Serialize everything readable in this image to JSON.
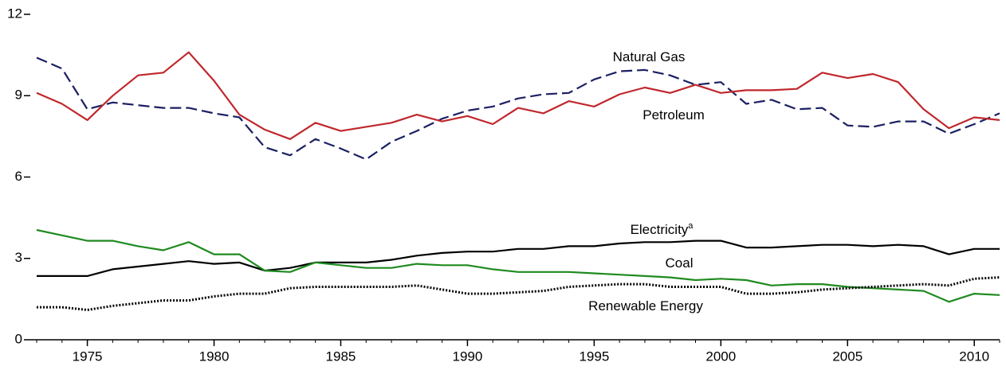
{
  "chart_data": {
    "type": "line",
    "x": [
      1973,
      1974,
      1975,
      1976,
      1977,
      1978,
      1979,
      1980,
      1981,
      1982,
      1983,
      1984,
      1985,
      1986,
      1987,
      1988,
      1989,
      1990,
      1991,
      1992,
      1993,
      1994,
      1995,
      1996,
      1997,
      1998,
      1999,
      2000,
      2001,
      2002,
      2003,
      2004,
      2005,
      2006,
      2007,
      2008,
      2009,
      2010,
      2011
    ],
    "xlim": [
      1973,
      2011
    ],
    "xticks": [
      1975,
      1980,
      1985,
      1990,
      1995,
      2000,
      2005,
      2010
    ],
    "ylim": [
      0,
      12
    ],
    "yticks": [
      0,
      3,
      6,
      9,
      12
    ],
    "series": [
      {
        "name": "Natural Gas",
        "color": "#1b2063",
        "dash": "dashed",
        "values": [
          10.4,
          10.0,
          8.5,
          8.75,
          8.65,
          8.55,
          8.55,
          8.35,
          8.2,
          7.1,
          6.8,
          7.4,
          7.05,
          6.65,
          7.3,
          7.7,
          8.15,
          8.45,
          8.6,
          8.9,
          9.05,
          9.1,
          9.6,
          9.9,
          9.95,
          9.75,
          9.4,
          9.5,
          8.7,
          8.85,
          8.5,
          8.55,
          7.9,
          7.85,
          8.05,
          8.05,
          7.6,
          7.95,
          8.35
        ]
      },
      {
        "name": "Petroleum",
        "color": "#c0272d",
        "dash": "solid",
        "values": [
          9.1,
          8.7,
          8.1,
          9.0,
          9.75,
          9.85,
          10.6,
          9.55,
          8.3,
          7.75,
          7.4,
          8.0,
          7.7,
          7.85,
          8.0,
          8.3,
          8.05,
          8.25,
          7.95,
          8.55,
          8.35,
          8.8,
          8.6,
          9.05,
          9.3,
          9.1,
          9.4,
          9.1,
          9.2,
          9.2,
          9.25,
          9.85,
          9.65,
          9.8,
          9.5,
          8.5,
          7.8,
          8.2,
          8.1
        ]
      },
      {
        "name": "Electricity",
        "note_marker": "a",
        "color": "#000000",
        "dash": "solid",
        "values": [
          2.35,
          2.35,
          2.35,
          2.6,
          2.7,
          2.8,
          2.9,
          2.8,
          2.85,
          2.55,
          2.65,
          2.85,
          2.85,
          2.85,
          2.95,
          3.1,
          3.2,
          3.25,
          3.25,
          3.35,
          3.35,
          3.45,
          3.45,
          3.55,
          3.6,
          3.6,
          3.65,
          3.65,
          3.4,
          3.4,
          3.45,
          3.5,
          3.5,
          3.45,
          3.5,
          3.45,
          3.15,
          3.35,
          3.35
        ]
      },
      {
        "name": "Coal",
        "color": "#1f8a1f",
        "dash": "solid",
        "values": [
          4.05,
          3.85,
          3.65,
          3.65,
          3.45,
          3.3,
          3.6,
          3.15,
          3.15,
          2.55,
          2.5,
          2.85,
          2.75,
          2.65,
          2.65,
          2.8,
          2.75,
          2.75,
          2.6,
          2.5,
          2.5,
          2.5,
          2.45,
          2.4,
          2.35,
          2.3,
          2.2,
          2.25,
          2.2,
          2.0,
          2.05,
          2.05,
          1.95,
          1.9,
          1.85,
          1.8,
          1.4,
          1.7,
          1.65
        ]
      },
      {
        "name": "Renewable Energy",
        "color": "#000000",
        "dash": "dotted",
        "values": [
          1.2,
          1.2,
          1.1,
          1.25,
          1.35,
          1.45,
          1.45,
          1.6,
          1.7,
          1.7,
          1.9,
          1.95,
          1.95,
          1.95,
          1.95,
          2.0,
          1.85,
          1.7,
          1.7,
          1.75,
          1.8,
          1.95,
          2.0,
          2.05,
          2.05,
          1.95,
          1.95,
          1.95,
          1.7,
          1.7,
          1.75,
          1.85,
          1.9,
          1.95,
          2.0,
          2.05,
          2.0,
          2.25,
          2.3
        ]
      }
    ]
  }
}
